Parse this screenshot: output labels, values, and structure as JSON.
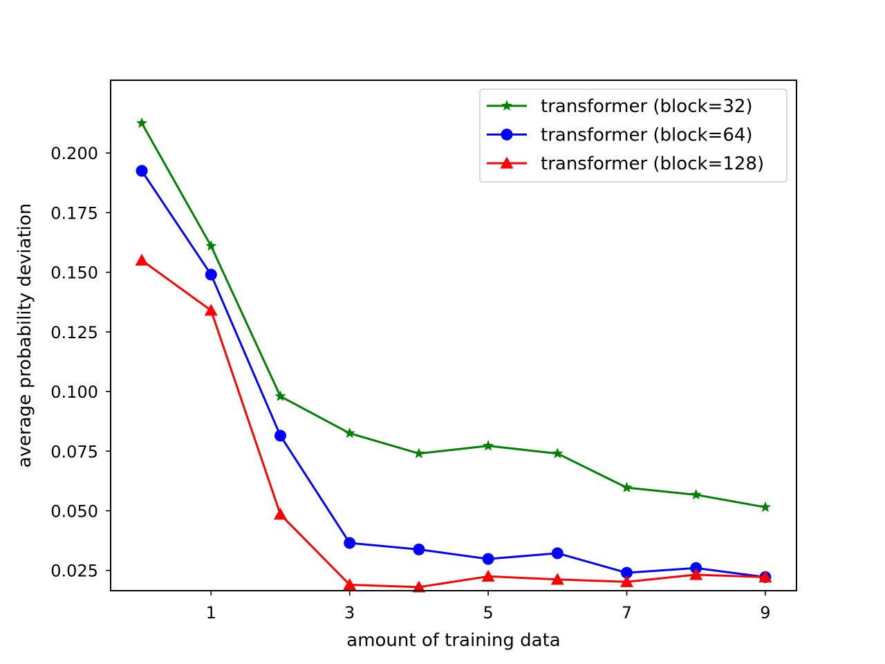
{
  "chart_data": {
    "type": "line",
    "title": "",
    "xlabel": "amount of training data",
    "ylabel": "average probability deviation",
    "x": [
      0,
      1,
      2,
      3,
      4,
      5,
      6,
      7,
      8,
      9
    ],
    "xticks": [
      1,
      3,
      5,
      7,
      9
    ],
    "yticks": [
      0.025,
      0.05,
      0.075,
      0.1,
      0.125,
      0.15,
      0.175,
      0.2
    ],
    "ytick_labels": [
      "0.025",
      "0.050",
      "0.075",
      "0.100",
      "0.125",
      "0.150",
      "0.175",
      "0.200"
    ],
    "xlim": [
      -0.45,
      9.45
    ],
    "ylim": [
      0.0165,
      0.2305
    ],
    "grid": false,
    "legend_position": "top-right",
    "series": [
      {
        "name": "transformer (block=32)",
        "color": "#008000",
        "marker": "star",
        "values": [
          0.2125,
          0.161,
          0.098,
          0.0825,
          0.074,
          0.0772,
          0.074,
          0.0597,
          0.0567,
          0.0515
        ]
      },
      {
        "name": "transformer (block=64)",
        "color": "#0000ff",
        "marker": "circle",
        "values": [
          0.1925,
          0.149,
          0.0815,
          0.0365,
          0.0338,
          0.0298,
          0.0322,
          0.024,
          0.026,
          0.0222
        ]
      },
      {
        "name": "transformer (block=128)",
        "color": "#ff0000",
        "marker": "triangle",
        "values": [
          0.155,
          0.134,
          0.0485,
          0.019,
          0.018,
          0.0225,
          0.0212,
          0.0202,
          0.0232,
          0.0222
        ]
      }
    ]
  }
}
